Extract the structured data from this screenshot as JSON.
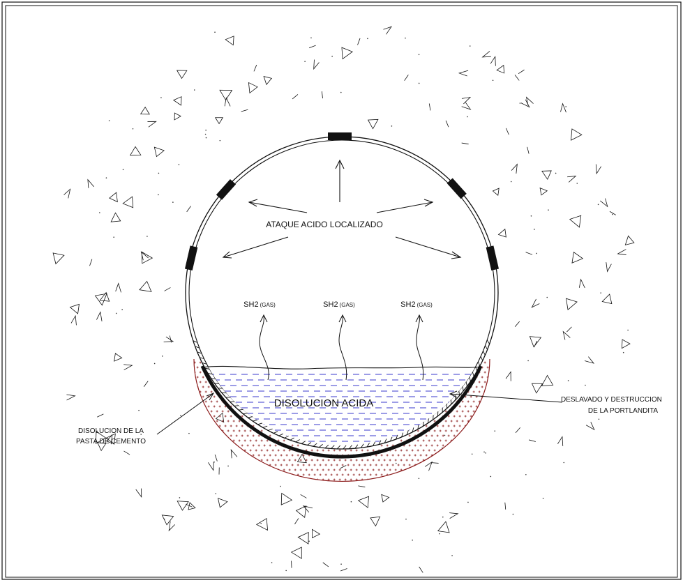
{
  "diagram": {
    "attack_label": "ATAQUE ACIDO LOCALIZADO",
    "gas_labels": [
      {
        "formula": "SH2",
        "note": "(GAS)"
      },
      {
        "formula": "SH2",
        "note": "(GAS)"
      },
      {
        "formula": "SH2",
        "note": "(GAS)"
      }
    ],
    "liquid_label": "DISOLUCION ACIDA",
    "left_callout": [
      "DISOLUCION DE LA",
      "PASTA DE CEMENTO"
    ],
    "right_callout": [
      "DESLAVADO Y DESTRUCCION",
      "DE LA PORTLANDITA"
    ],
    "colors": {
      "line": "#111111",
      "liquid_dash": "#3a3acc",
      "portlandite_zone": "#8b1a1a"
    }
  }
}
